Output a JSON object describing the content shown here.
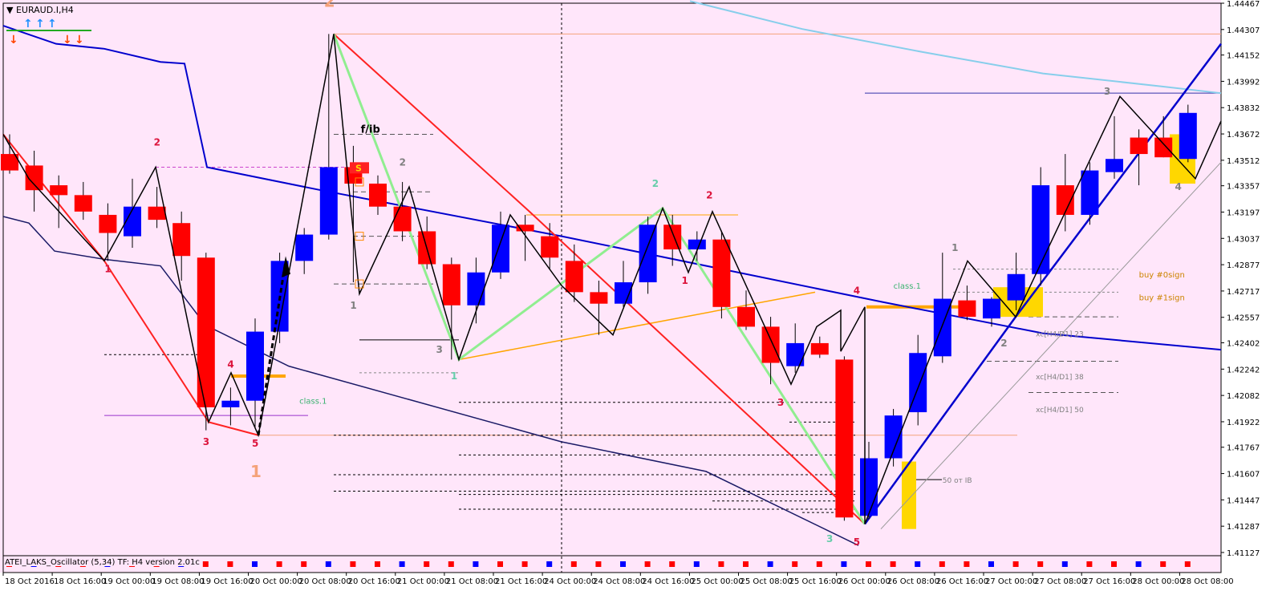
{
  "window": {
    "title": "EURAUD.I,H4"
  },
  "indicator": {
    "label": "ATEI_LAKS_Oscillator (5,34) TF: H4 version 2.01c"
  },
  "colors": {
    "background": "#ffe6fa",
    "bull_candle": "#0000ff",
    "bear_candle": "#ff0000",
    "zigzag": "#000000",
    "channel": "#0000cd",
    "ma_light": "#87ceeb",
    "green_wave": "#90ee90",
    "orange_line": "#ffa500",
    "red_line": "#ff2222"
  },
  "chart_data": {
    "type": "candlestick",
    "symbol": "EURAUD.I",
    "timeframe": "H4",
    "ylim": [
      1.41127,
      1.44467
    ],
    "y_ticks": [
      "1.44467",
      "1.44307",
      "1.44152",
      "1.43992",
      "1.43832",
      "1.43672",
      "1.43512",
      "1.43357",
      "1.43197",
      "1.43037",
      "1.42877",
      "1.42717",
      "1.42557",
      "1.42402",
      "1.42242",
      "1.42082",
      "1.41922",
      "1.41767",
      "1.41607",
      "1.41447",
      "1.41287",
      "1.41127"
    ],
    "x_ticks": [
      "18 Oct 2016",
      "18 Oct 16:00",
      "19 Oct 00:00",
      "19 Oct 08:00",
      "19 Oct 16:00",
      "20 Oct 00:00",
      "20 Oct 08:00",
      "20 Oct 16:00",
      "21 Oct 00:00",
      "21 Oct 08:00",
      "21 Oct 16:00",
      "24 Oct 00:00",
      "24 Oct 08:00",
      "24 Oct 16:00",
      "25 Oct 00:00",
      "25 Oct 08:00",
      "25 Oct 16:00",
      "26 Oct 00:00",
      "26 Oct 08:00",
      "26 Oct 16:00",
      "27 Oct 00:00",
      "27 Oct 08:00",
      "27 Oct 16:00",
      "28 Oct 00:00",
      "28 Oct 08:00"
    ],
    "candles": [
      {
        "i": 0,
        "o": 1.4355,
        "h": 1.4367,
        "l": 1.4343,
        "c": 1.4345
      },
      {
        "i": 1,
        "o": 1.4348,
        "h": 1.4357,
        "l": 1.432,
        "c": 1.4333
      },
      {
        "i": 2,
        "o": 1.4336,
        "h": 1.4342,
        "l": 1.431,
        "c": 1.433
      },
      {
        "i": 3,
        "o": 1.433,
        "h": 1.4338,
        "l": 1.4315,
        "c": 1.432
      },
      {
        "i": 4,
        "o": 1.4318,
        "h": 1.4325,
        "l": 1.429,
        "c": 1.4307
      },
      {
        "i": 5,
        "o": 1.4305,
        "h": 1.434,
        "l": 1.4298,
        "c": 1.4323
      },
      {
        "i": 6,
        "o": 1.4323,
        "h": 1.4335,
        "l": 1.431,
        "c": 1.4315
      },
      {
        "i": 7,
        "o": 1.4313,
        "h": 1.432,
        "l": 1.4278,
        "c": 1.4293
      },
      {
        "i": 8,
        "o": 1.4292,
        "h": 1.4295,
        "l": 1.4187,
        "c": 1.4201
      },
      {
        "i": 9,
        "o": 1.4201,
        "h": 1.4213,
        "l": 1.419,
        "c": 1.4205
      },
      {
        "i": 10,
        "o": 1.4205,
        "h": 1.4255,
        "l": 1.4188,
        "c": 1.4247
      },
      {
        "i": 11,
        "o": 1.4247,
        "h": 1.4295,
        "l": 1.424,
        "c": 1.429
      },
      {
        "i": 12,
        "o": 1.429,
        "h": 1.431,
        "l": 1.4282,
        "c": 1.4306
      },
      {
        "i": 13,
        "o": 1.4306,
        "h": 1.4428,
        "l": 1.4303,
        "c": 1.4347
      },
      {
        "i": 14,
        "o": 1.4347,
        "h": 1.436,
        "l": 1.4277,
        "c": 1.4337
      },
      {
        "i": 15,
        "o": 1.4337,
        "h": 1.4342,
        "l": 1.4318,
        "c": 1.4323
      },
      {
        "i": 16,
        "o": 1.4323,
        "h": 1.4338,
        "l": 1.4302,
        "c": 1.4308
      },
      {
        "i": 17,
        "o": 1.4308,
        "h": 1.4317,
        "l": 1.4285,
        "c": 1.4288
      },
      {
        "i": 18,
        "o": 1.4288,
        "h": 1.4292,
        "l": 1.423,
        "c": 1.4263
      },
      {
        "i": 19,
        "o": 1.4263,
        "h": 1.4292,
        "l": 1.4252,
        "c": 1.4283
      },
      {
        "i": 20,
        "o": 1.4283,
        "h": 1.432,
        "l": 1.4279,
        "c": 1.4312
      },
      {
        "i": 21,
        "o": 1.4312,
        "h": 1.4318,
        "l": 1.429,
        "c": 1.4308
      },
      {
        "i": 22,
        "o": 1.4305,
        "h": 1.4313,
        "l": 1.4285,
        "c": 1.4292
      },
      {
        "i": 23,
        "o": 1.429,
        "h": 1.43,
        "l": 1.4265,
        "c": 1.4271
      },
      {
        "i": 24,
        "o": 1.4271,
        "h": 1.4278,
        "l": 1.4245,
        "c": 1.4264
      },
      {
        "i": 25,
        "o": 1.4264,
        "h": 1.429,
        "l": 1.4262,
        "c": 1.4277
      },
      {
        "i": 26,
        "o": 1.4277,
        "h": 1.4317,
        "l": 1.427,
        "c": 1.4312
      },
      {
        "i": 27,
        "o": 1.4312,
        "h": 1.4318,
        "l": 1.4287,
        "c": 1.4297
      },
      {
        "i": 28,
        "o": 1.4297,
        "h": 1.4308,
        "l": 1.429,
        "c": 1.4303
      },
      {
        "i": 29,
        "o": 1.4303,
        "h": 1.4308,
        "l": 1.4255,
        "c": 1.4262
      },
      {
        "i": 30,
        "o": 1.4262,
        "h": 1.4272,
        "l": 1.4248,
        "c": 1.425
      },
      {
        "i": 31,
        "o": 1.425,
        "h": 1.4256,
        "l": 1.4215,
        "c": 1.4228
      },
      {
        "i": 32,
        "o": 1.4226,
        "h": 1.4252,
        "l": 1.4222,
        "c": 1.424
      },
      {
        "i": 33,
        "o": 1.424,
        "h": 1.4244,
        "l": 1.4231,
        "c": 1.4233
      },
      {
        "i": 34,
        "o": 1.423,
        "h": 1.4232,
        "l": 1.4132,
        "c": 1.4134
      },
      {
        "i": 35,
        "o": 1.4135,
        "h": 1.418,
        "l": 1.4133,
        "c": 1.417
      },
      {
        "i": 36,
        "o": 1.417,
        "h": 1.42,
        "l": 1.4165,
        "c": 1.4196
      },
      {
        "i": 37,
        "o": 1.4198,
        "h": 1.4245,
        "l": 1.419,
        "c": 1.4234
      },
      {
        "i": 38,
        "o": 1.4232,
        "h": 1.4295,
        "l": 1.4228,
        "c": 1.4267
      },
      {
        "i": 39,
        "o": 1.4266,
        "h": 1.4275,
        "l": 1.4254,
        "c": 1.4256
      },
      {
        "i": 40,
        "o": 1.4255,
        "h": 1.4268,
        "l": 1.425,
        "c": 1.4267
      },
      {
        "i": 41,
        "o": 1.4266,
        "h": 1.4295,
        "l": 1.426,
        "c": 1.4282
      },
      {
        "i": 42,
        "o": 1.4282,
        "h": 1.4347,
        "l": 1.4275,
        "c": 1.4336
      },
      {
        "i": 43,
        "o": 1.4336,
        "h": 1.4355,
        "l": 1.4308,
        "c": 1.4318
      },
      {
        "i": 44,
        "o": 1.4318,
        "h": 1.435,
        "l": 1.4312,
        "c": 1.4345
      },
      {
        "i": 45,
        "o": 1.4344,
        "h": 1.4378,
        "l": 1.434,
        "c": 1.4352
      },
      {
        "i": 46,
        "o": 1.4365,
        "h": 1.437,
        "l": 1.4336,
        "c": 1.4355
      },
      {
        "i": 47,
        "o": 1.4365,
        "h": 1.4378,
        "l": 1.4353,
        "c": 1.4353
      },
      {
        "i": 48,
        "o": 1.4352,
        "h": 1.4385,
        "l": 1.435,
        "c": 1.438
      }
    ],
    "annotations": {
      "wave_labels": [
        {
          "text": "1",
          "i": 4,
          "y": 1.4285,
          "color": "#dc143c"
        },
        {
          "text": "2",
          "i": 6,
          "y": 1.4362,
          "color": "#dc143c"
        },
        {
          "text": "3",
          "i": 8,
          "y": 1.418,
          "color": "#dc143c"
        },
        {
          "text": "4",
          "i": 9,
          "y": 1.4227,
          "color": "#dc143c"
        },
        {
          "text": "5",
          "i": 10,
          "y": 1.4179,
          "color": "#dc143c"
        },
        {
          "text": "1",
          "i": 14,
          "y": 1.4263,
          "color": "#808080"
        },
        {
          "text": "2",
          "i": 16,
          "y": 1.435,
          "color": "#808080"
        },
        {
          "text": "3",
          "i": 17.5,
          "y": 1.4236,
          "color": "#808080"
        },
        {
          "text": "1",
          "i": 18.1,
          "y": 1.422,
          "color": "#66cdaa"
        },
        {
          "text": "2",
          "i": 26.3,
          "y": 1.4337,
          "color": "#66cdaa"
        },
        {
          "text": "2",
          "i": 28.5,
          "y": 1.433,
          "color": "#dc143c"
        },
        {
          "text": "1",
          "i": 27.5,
          "y": 1.4278,
          "color": "#dc143c"
        },
        {
          "text": "3",
          "i": 31.4,
          "y": 1.4204,
          "color": "#dc143c"
        },
        {
          "text": "4",
          "i": 34.5,
          "y": 1.4272,
          "color": "#dc143c"
        },
        {
          "text": "5",
          "i": 34.5,
          "y": 1.4119,
          "color": "#dc143c"
        },
        {
          "text": "3",
          "i": 33.4,
          "y": 1.4121,
          "color": "#66cdaa"
        },
        {
          "text": "1",
          "i": 38.5,
          "y": 1.4298,
          "color": "#808080"
        },
        {
          "text": "2",
          "i": 40.5,
          "y": 1.424,
          "color": "#808080"
        },
        {
          "text": "3",
          "i": 44.7,
          "y": 1.4393,
          "color": "#808080"
        },
        {
          "text": "4",
          "i": 47.6,
          "y": 1.4335,
          "color": "#808080"
        }
      ],
      "big_labels": [
        {
          "text": "2",
          "i": 13,
          "y": 1.4448
        },
        {
          "text": "1",
          "i": 10,
          "y": 1.4162
        }
      ],
      "text_labels": [
        {
          "text": "f/ib",
          "i": 14.3,
          "y": 1.437,
          "color": "#000000",
          "size": 13
        },
        {
          "text": "class.1",
          "i": 11.8,
          "y": 1.4205,
          "color": "#3cb371",
          "size": 10
        },
        {
          "text": "class.1",
          "i": 36,
          "y": 1.4275,
          "color": "#3cb371",
          "size": 10
        },
        {
          "text": "buy #0sign",
          "i": 46,
          "y": 1.4282,
          "color": "#cc8400",
          "size": 10
        },
        {
          "text": "buy #1sign",
          "i": 46,
          "y": 1.4268,
          "color": "#cc8400",
          "size": 10
        },
        {
          "text": "xc[H4/D1] 23",
          "i": 41.8,
          "y": 1.4246,
          "color": "#808080",
          "size": 9
        },
        {
          "text": "xc[H4/D1] 38",
          "i": 41.8,
          "y": 1.422,
          "color": "#808080",
          "size": 9
        },
        {
          "text": "xc[H4/D1] 50",
          "i": 41.8,
          "y": 1.42,
          "color": "#808080",
          "size": 9
        },
        {
          "text": "50 от IB",
          "i": 38,
          "y": 1.4157,
          "color": "#808080",
          "size": 9
        }
      ]
    }
  }
}
